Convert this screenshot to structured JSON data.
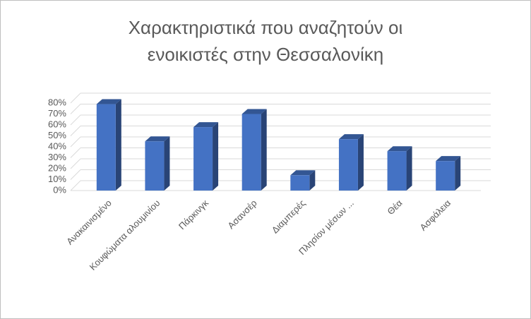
{
  "chart_data": {
    "type": "bar3d",
    "title": "Χαρακτηριστικά που αναζητούν οι ενοικιστές στην Θεσσαλονίκη",
    "categories": [
      "Ανακαινισμένο",
      "Κουφώματα αλουμινίου",
      "Πάρκινγκ",
      "Ασανσέρ",
      "Διαμπερές",
      "Πλησίον μέσων ...",
      "Θέα",
      "Ασφάλεια"
    ],
    "values": [
      79,
      45,
      58,
      70,
      14,
      47,
      36,
      27
    ],
    "color": "#4472c4",
    "ylim": [
      0,
      80
    ],
    "yticks": [
      {
        "value": 0,
        "label": "0%"
      },
      {
        "value": 10,
        "label": "10%"
      },
      {
        "value": 20,
        "label": "20%"
      },
      {
        "value": 30,
        "label": "30%"
      },
      {
        "value": 40,
        "label": "40%"
      },
      {
        "value": 50,
        "label": "50%"
      },
      {
        "value": 60,
        "label": "60%"
      },
      {
        "value": 70,
        "label": "70%"
      },
      {
        "value": 80,
        "label": "80%"
      }
    ],
    "grid": true
  }
}
